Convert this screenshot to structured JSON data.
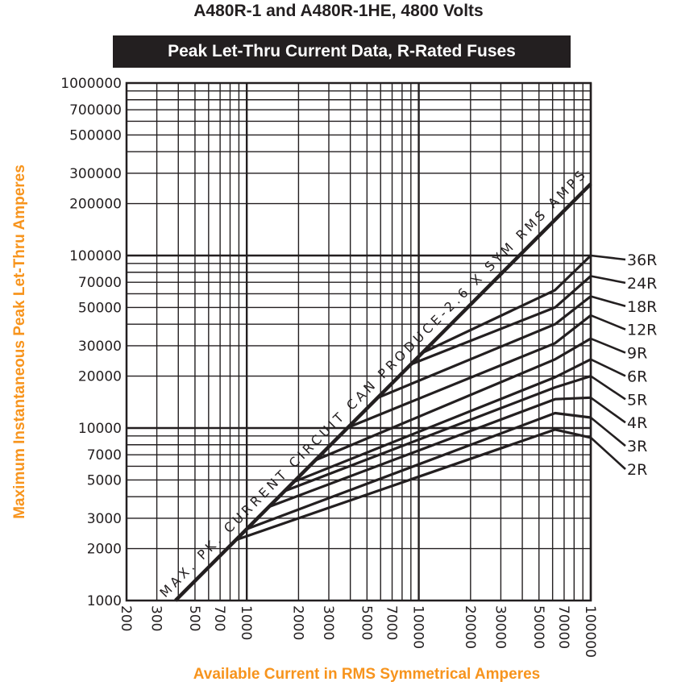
{
  "title": "A480R-1 and A480R-1HE, 4800 Volts",
  "subtitle": "Peak Let-Thru Current Data,  R-Rated Fuses",
  "chart_data": {
    "type": "line",
    "x_scale": "log",
    "y_scale": "log",
    "xlabel": "Available Current in RMS Symmetrical Amperes",
    "ylabel": "Maximum Instantaneous Peak Let-Thru Amperes",
    "xlim": [
      200,
      100000
    ],
    "ylim": [
      1000,
      1000000
    ],
    "x_ticks": [
      "200",
      "300",
      "500",
      "700",
      "1000",
      "2000",
      "3000",
      "5000",
      "7000",
      "10000",
      "20000",
      "30000",
      "50000",
      "70000",
      "100000"
    ],
    "y_ticks": [
      "1000000",
      "700000",
      "500000",
      "300000",
      "200000",
      "100000",
      "70000",
      "50000",
      "30000",
      "20000",
      "10000",
      "7000",
      "5000",
      "3000",
      "2000",
      "1000"
    ],
    "grid": true,
    "annotation": "MAX. PK. CURRENT CIRCUIT CAN PRODUCE-2.6 X SYM RMS AMPS",
    "max_line": {
      "x": [
        385,
        100000
      ],
      "y": [
        1000,
        260000
      ]
    },
    "series": [
      {
        "name": "36R",
        "x": [
          10500,
          62000,
          100000
        ],
        "y": [
          27300,
          63000,
          100000
        ]
      },
      {
        "name": "24R",
        "x": [
          9000,
          62000,
          100000
        ],
        "y": [
          23400,
          50000,
          76000
        ]
      },
      {
        "name": "18R",
        "x": [
          5800,
          62000,
          100000
        ],
        "y": [
          15000,
          40000,
          58000
        ]
      },
      {
        "name": "12R",
        "x": [
          3900,
          62000,
          100000
        ],
        "y": [
          10100,
          31000,
          45000
        ]
      },
      {
        "name": "9R",
        "x": [
          2500,
          62000,
          100000
        ],
        "y": [
          6500,
          25000,
          33000
        ]
      },
      {
        "name": "6R",
        "x": [
          1900,
          62000,
          100000
        ],
        "y": [
          4900,
          19700,
          25000
        ]
      },
      {
        "name": "5R",
        "x": [
          1650,
          62000,
          100000
        ],
        "y": [
          4300,
          17200,
          20000
        ]
      },
      {
        "name": "4R",
        "x": [
          1350,
          62000,
          100000
        ],
        "y": [
          3500,
          14700,
          15000
        ]
      },
      {
        "name": "3R",
        "x": [
          1000,
          62000,
          100000
        ],
        "y": [
          2600,
          12200,
          11500
        ]
      },
      {
        "name": "2R",
        "x": [
          870,
          62000,
          100000
        ],
        "y": [
          2250,
          9800,
          8800
        ]
      }
    ]
  }
}
